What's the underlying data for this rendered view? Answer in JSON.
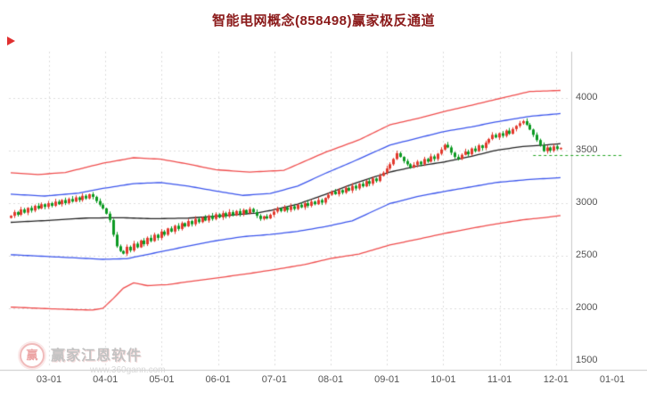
{
  "title": "智能电网概念(858498)赢家极反通道",
  "watermark": {
    "brand": "赢家江恩软件",
    "url": "www.360gann.com",
    "logo_char": "赢"
  },
  "colors": {
    "title": "#8b1a1a",
    "up": "#e23a2e",
    "down": "#0c9a22",
    "band_red": "#ef4d4d",
    "band_blue": "#3b55ec",
    "band_mid": "#222222",
    "grid": "#dcdcdc",
    "axis_line": "#c9c9c9",
    "axis_text": "#555555",
    "green_dash": "#1ca31c",
    "marker": "#e03030",
    "background": "#ffffff"
  },
  "chart_data": {
    "type": "candlestick",
    "title": "智能电网概念(858498)赢家极反通道",
    "legend": "none",
    "grid": true,
    "x_ticks": [
      "03-01",
      "04-01",
      "05-01",
      "06-01",
      "07-01",
      "08-01",
      "09-01",
      "10-01",
      "11-01",
      "12-01",
      "01-01"
    ],
    "y_ticks": [
      1500,
      2000,
      2500,
      3000,
      3500,
      4000
    ],
    "ylim": [
      1440,
      4440
    ],
    "closes": [
      2880,
      2915,
      2890,
      2940,
      2910,
      2955,
      2930,
      2975,
      2950,
      2990,
      2965,
      3000,
      2975,
      3015,
      2990,
      3030,
      3000,
      3040,
      3015,
      3055,
      3030,
      3070,
      3045,
      3085,
      3060,
      3020,
      2985,
      2950,
      2900,
      2840,
      2700,
      2590,
      2545,
      2520,
      2585,
      2550,
      2615,
      2580,
      2645,
      2610,
      2670,
      2640,
      2700,
      2670,
      2730,
      2700,
      2760,
      2730,
      2785,
      2755,
      2810,
      2780,
      2830,
      2800,
      2850,
      2820,
      2865,
      2835,
      2880,
      2850,
      2895,
      2865,
      2905,
      2875,
      2915,
      2885,
      2925,
      2895,
      2935,
      2905,
      2945,
      2915,
      2880,
      2850,
      2875,
      2855,
      2890,
      2920,
      2950,
      2925,
      2960,
      2935,
      2970,
      2945,
      2985,
      2960,
      3000,
      2975,
      3015,
      2990,
      3030,
      3005,
      3050,
      3080,
      3110,
      3085,
      3125,
      3100,
      3145,
      3120,
      3165,
      3140,
      3185,
      3160,
      3210,
      3185,
      3235,
      3210,
      3260,
      3290,
      3330,
      3370,
      3420,
      3475,
      3440,
      3400,
      3370,
      3340,
      3365,
      3395,
      3370,
      3420,
      3395,
      3445,
      3420,
      3470,
      3510,
      3555,
      3530,
      3480,
      3440,
      3420,
      3460,
      3490,
      3465,
      3520,
      3495,
      3550,
      3525,
      3575,
      3610,
      3650,
      3625,
      3665,
      3640,
      3690,
      3660,
      3705,
      3735,
      3760,
      3780,
      3745,
      3700,
      3650,
      3600,
      3550,
      3495,
      3530,
      3500,
      3540,
      3515,
      3525
    ],
    "bands": [
      {
        "name": "upper-red-channel",
        "color": "#ef4d4d",
        "points": [
          [
            0,
            3290
          ],
          [
            8,
            3272
          ],
          [
            16,
            3292
          ],
          [
            27,
            3380
          ],
          [
            36,
            3432
          ],
          [
            44,
            3418
          ],
          [
            52,
            3372
          ],
          [
            60,
            3318
          ],
          [
            70,
            3296
          ],
          [
            80,
            3312
          ],
          [
            92,
            3482
          ],
          [
            102,
            3602
          ],
          [
            111,
            3745
          ],
          [
            120,
            3812
          ],
          [
            127,
            3872
          ],
          [
            135,
            3932
          ],
          [
            142,
            3986
          ],
          [
            152,
            4062
          ],
          [
            161,
            4072
          ]
        ]
      },
      {
        "name": "upper-blue-channel",
        "color": "#3b55ec",
        "points": [
          [
            0,
            3085
          ],
          [
            10,
            3068
          ],
          [
            20,
            3096
          ],
          [
            27,
            3140
          ],
          [
            36,
            3186
          ],
          [
            44,
            3196
          ],
          [
            52,
            3162
          ],
          [
            60,
            3116
          ],
          [
            68,
            3074
          ],
          [
            76,
            3092
          ],
          [
            84,
            3162
          ],
          [
            92,
            3282
          ],
          [
            100,
            3392
          ],
          [
            111,
            3552
          ],
          [
            120,
            3626
          ],
          [
            127,
            3682
          ],
          [
            135,
            3726
          ],
          [
            142,
            3772
          ],
          [
            152,
            3826
          ],
          [
            161,
            3852
          ]
        ]
      },
      {
        "name": "middle-trend-line",
        "color": "#222222",
        "points": [
          [
            0,
            2818
          ],
          [
            11,
            2836
          ],
          [
            22,
            2858
          ],
          [
            32,
            2862
          ],
          [
            42,
            2852
          ],
          [
            52,
            2858
          ],
          [
            62,
            2880
          ],
          [
            72,
            2906
          ],
          [
            76,
            2930
          ],
          [
            84,
            2990
          ],
          [
            92,
            3082
          ],
          [
            101,
            3192
          ],
          [
            111,
            3296
          ],
          [
            119,
            3352
          ],
          [
            127,
            3392
          ],
          [
            135,
            3446
          ],
          [
            142,
            3502
          ],
          [
            150,
            3540
          ],
          [
            156,
            3552
          ],
          [
            161,
            3566
          ]
        ]
      },
      {
        "name": "lower-blue-channel",
        "color": "#3b55ec",
        "points": [
          [
            0,
            2510
          ],
          [
            10,
            2494
          ],
          [
            20,
            2478
          ],
          [
            27,
            2466
          ],
          [
            34,
            2472
          ],
          [
            43,
            2532
          ],
          [
            52,
            2592
          ],
          [
            60,
            2642
          ],
          [
            68,
            2682
          ],
          [
            76,
            2702
          ],
          [
            84,
            2732
          ],
          [
            92,
            2776
          ],
          [
            100,
            2832
          ],
          [
            111,
            2996
          ],
          [
            119,
            3062
          ],
          [
            127,
            3112
          ],
          [
            135,
            3156
          ],
          [
            142,
            3196
          ],
          [
            152,
            3226
          ],
          [
            161,
            3242
          ]
        ]
      },
      {
        "name": "lower-red-channel",
        "color": "#ef4d4d",
        "points": [
          [
            0,
            2012
          ],
          [
            10,
            1998
          ],
          [
            18,
            1988
          ],
          [
            24,
            1984
          ],
          [
            27,
            2000
          ],
          [
            30,
            2092
          ],
          [
            33,
            2192
          ],
          [
            36,
            2242
          ],
          [
            40,
            2216
          ],
          [
            46,
            2226
          ],
          [
            54,
            2262
          ],
          [
            62,
            2296
          ],
          [
            70,
            2332
          ],
          [
            78,
            2372
          ],
          [
            86,
            2416
          ],
          [
            94,
            2476
          ],
          [
            102,
            2516
          ],
          [
            111,
            2602
          ],
          [
            119,
            2656
          ],
          [
            127,
            2712
          ],
          [
            135,
            2762
          ],
          [
            142,
            2802
          ],
          [
            150,
            2842
          ],
          [
            156,
            2862
          ],
          [
            161,
            2882
          ]
        ]
      }
    ],
    "forecast_line": {
      "value": 3460,
      "from_index": 153,
      "style": "dashed",
      "color": "#1ca31c"
    }
  }
}
